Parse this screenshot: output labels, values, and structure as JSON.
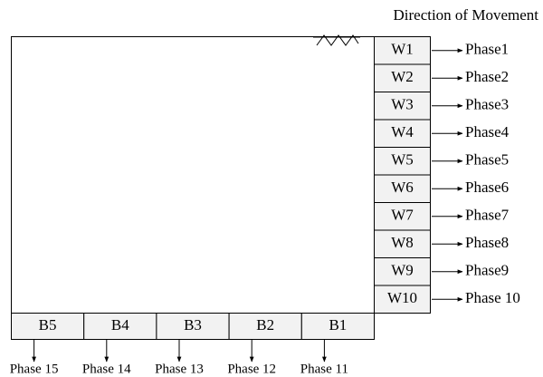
{
  "title": "Direction of Movement",
  "side_cells": [
    {
      "label": "W1",
      "phase": "Phase1"
    },
    {
      "label": "W2",
      "phase": "Phase2"
    },
    {
      "label": "W3",
      "phase": "Phase3"
    },
    {
      "label": "W4",
      "phase": "Phase4"
    },
    {
      "label": "W5",
      "phase": "Phase5"
    },
    {
      "label": "W6",
      "phase": "Phase6"
    },
    {
      "label": "W7",
      "phase": "Phase7"
    },
    {
      "label": "W8",
      "phase": "Phase8"
    },
    {
      "label": "W9",
      "phase": "Phase9"
    },
    {
      "label": "W10",
      "phase": "Phase 10"
    }
  ],
  "bottom_cells": [
    {
      "label": "B5",
      "phase": "Phase 15"
    },
    {
      "label": "B4",
      "phase": "Phase 14"
    },
    {
      "label": "B3",
      "phase": "Phase 13"
    },
    {
      "label": "B2",
      "phase": "Phase 12"
    },
    {
      "label": "B1",
      "phase": "Phase 11"
    }
  ]
}
